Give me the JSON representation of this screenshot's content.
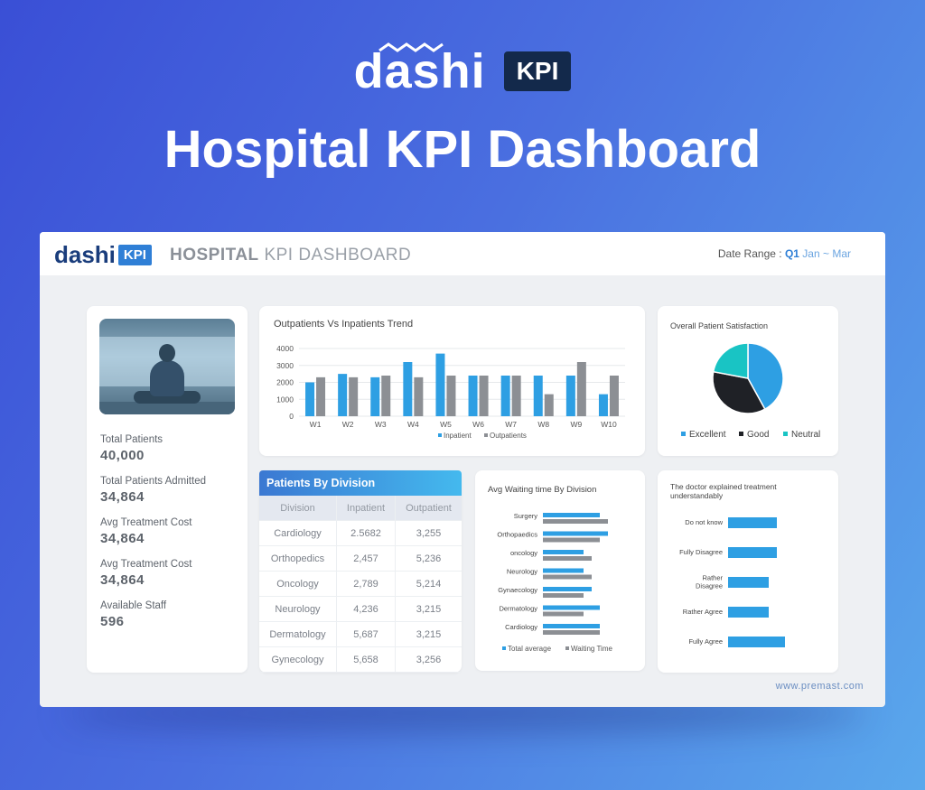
{
  "hero": {
    "logo_text": "dashi",
    "logo_badge": "KPI",
    "title": "Hospital KPI Dashboard"
  },
  "topbar": {
    "logo_text": "dashi",
    "logo_badge": "KPI",
    "title_bold": "HOSPITAL",
    "title_rest": "KPI DASHBOARD",
    "date_label": "Date Range :",
    "date_quarter": "Q1",
    "date_months": "Jan ~ Mar"
  },
  "kpis": [
    {
      "label": "Total Patients",
      "value": "40,000"
    },
    {
      "label": "Total Patients Admitted",
      "value": "34,864"
    },
    {
      "label": "Avg Treatment Cost",
      "value": "34,864"
    },
    {
      "label": "Avg Treatment Cost",
      "value": "34,864"
    },
    {
      "label": "Available Staff",
      "value": "596"
    }
  ],
  "division": {
    "title": "Patients By Division",
    "headers": [
      "Division",
      "Inpatient",
      "Outpatient"
    ],
    "rows": [
      [
        "Cardiology",
        "2.5682",
        "3,255"
      ],
      [
        "Orthopedics",
        "2,457",
        "5,236"
      ],
      [
        "Oncology",
        "2,789",
        "5,214"
      ],
      [
        "Neurology",
        "4,236",
        "3,215"
      ],
      [
        "Dermatology",
        "5,687",
        "3,215"
      ],
      [
        "Gynecology",
        "5,658",
        "3,256"
      ]
    ]
  },
  "colors": {
    "blue": "#2e9fe3",
    "gray": "#8c8f94",
    "dark": "#1f2126",
    "teal": "#19c4c4"
  },
  "footer": {
    "url": "www.premast.com"
  },
  "chart_data": [
    {
      "type": "bar",
      "title": "Outpatients Vs Inpatients Trend",
      "categories": [
        "W1",
        "W2",
        "W3",
        "W4",
        "W5",
        "W6",
        "W7",
        "W8",
        "W9",
        "W10"
      ],
      "series": [
        {
          "name": "Inpatient",
          "values": [
            2000,
            2500,
            2300,
            3200,
            3700,
            2400,
            2400,
            2400,
            2400,
            1300
          ]
        },
        {
          "name": "Outpatients",
          "values": [
            2300,
            2300,
            2400,
            2300,
            2400,
            2400,
            2400,
            1300,
            3200,
            2400
          ]
        }
      ],
      "ylim": [
        0,
        4000
      ],
      "yticks": [
        "0",
        "1000",
        "2000",
        "3000",
        "4000"
      ],
      "grid": true,
      "legend": "bottom"
    },
    {
      "type": "pie",
      "title": "Overall Patient Satisfaction",
      "labels": [
        "Excellent",
        "Good",
        "Neutral"
      ],
      "values": [
        42,
        36,
        22
      ],
      "legend": "bottom"
    },
    {
      "type": "bar",
      "orientation": "horizontal",
      "title": "Avg Waiting time By Division",
      "categories": [
        "Surgery",
        "Orthopaedics",
        "oncology",
        "Neurology",
        "Gynaecology",
        "Dermatology",
        "Cardiology"
      ],
      "series": [
        {
          "name": "Total average",
          "values": [
            70,
            80,
            50,
            50,
            60,
            70,
            70
          ]
        },
        {
          "name": "Waiting Time",
          "values": [
            80,
            70,
            60,
            60,
            50,
            50,
            70
          ]
        }
      ],
      "legend": "bottom"
    },
    {
      "type": "bar",
      "orientation": "horizontal",
      "title": "The doctor explained treatment understandably",
      "categories": [
        "Do not know",
        "Fully Disagree",
        "Rather Disagree",
        "Rather Agree",
        "Fully Agree"
      ],
      "values": [
        60,
        60,
        50,
        50,
        70
      ]
    }
  ]
}
